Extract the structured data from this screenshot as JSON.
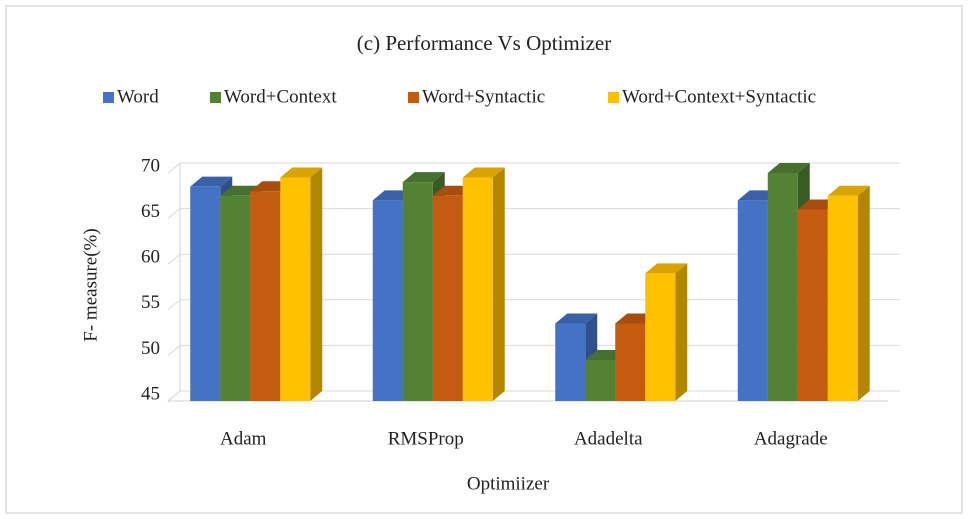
{
  "chart_data": {
    "type": "bar3d",
    "title": "(c) Performance Vs Optimizer",
    "x_label": "Optimiizer",
    "y_label": "F- measure(%)",
    "categories": [
      "Adam",
      "RMSProp",
      "Adadelta",
      "Adagrade"
    ],
    "series": [
      {
        "name": "Word",
        "color": "#4472c4",
        "values": [
          68.5,
          67,
          53.5,
          67
        ]
      },
      {
        "name": "Word+Context",
        "color": "#548235",
        "values": [
          67.5,
          69,
          49.5,
          70
        ]
      },
      {
        "name": "Word+Syntactic",
        "color": "#c55a11",
        "values": [
          68,
          67.5,
          53.5,
          66
        ]
      },
      {
        "name": "Word+Context+Syntactic",
        "color": "#ffc000",
        "values": [
          69.5,
          69.5,
          59,
          67.5
        ]
      }
    ],
    "ylim": [
      45,
      70
    ],
    "yticks": [
      45,
      50,
      55,
      60,
      65,
      70
    ],
    "grid": true
  }
}
